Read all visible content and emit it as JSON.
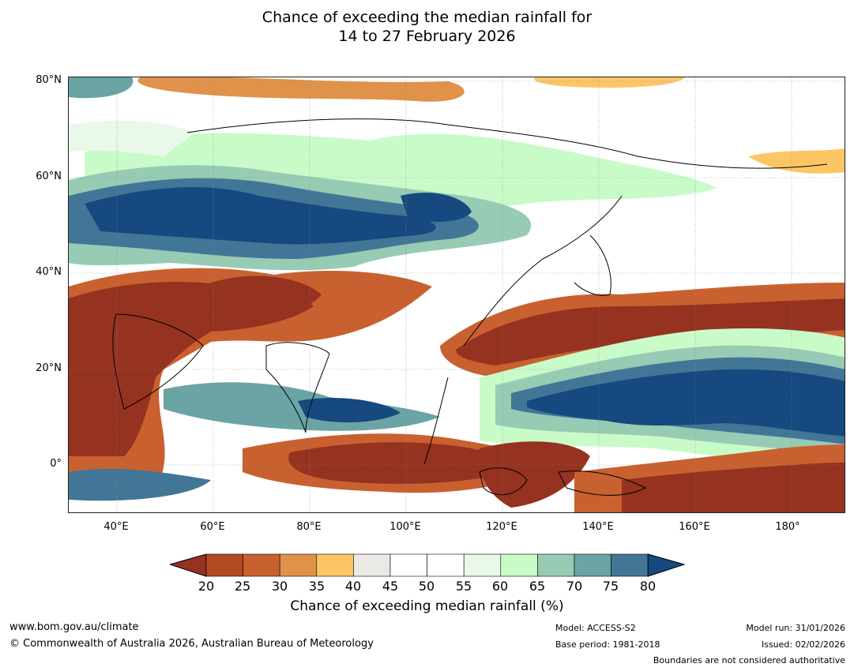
{
  "title_line1": "Chance of exceeding the median rainfall for",
  "title_line2": "14 to 27 February 2026",
  "map": {
    "lat_labels": [
      "80°N",
      "60°N",
      "40°N",
      "20°N",
      "0°"
    ],
    "lon_labels": [
      "40°E",
      "60°E",
      "80°E",
      "100°E",
      "120°E",
      "140°E",
      "160°E",
      "180°"
    ],
    "lat_range": [
      -10,
      80
    ],
    "lon_range": [
      30,
      191
    ]
  },
  "legend": {
    "title": "Chance of exceeding median rainfall (%)",
    "ticks": [
      "20",
      "25",
      "30",
      "35",
      "40",
      "45",
      "50",
      "55",
      "60",
      "65",
      "70",
      "75",
      "80"
    ],
    "colors": [
      "#953220",
      "#b04a22",
      "#c9602f",
      "#e0924a",
      "#fcc665",
      "#ebe9e4",
      "#ffffff",
      "#ffffff",
      "#e9f8e8",
      "#c8fbc8",
      "#98cbb4",
      "#6aa4a4",
      "#427696",
      "#15497f"
    ]
  },
  "footer": {
    "website": "www.bom.gov.au/climate",
    "copyright": "© Commonwealth of Australia 2026, Australian Bureau of Meteorology",
    "model": "Model: ACCESS-S2",
    "base_period": "Base period: 1981-2018",
    "model_run": "Model run: 31/01/2026",
    "issued": "Issued: 02/02/2026",
    "disclaimer": "Boundaries are not considered authoritative"
  }
}
